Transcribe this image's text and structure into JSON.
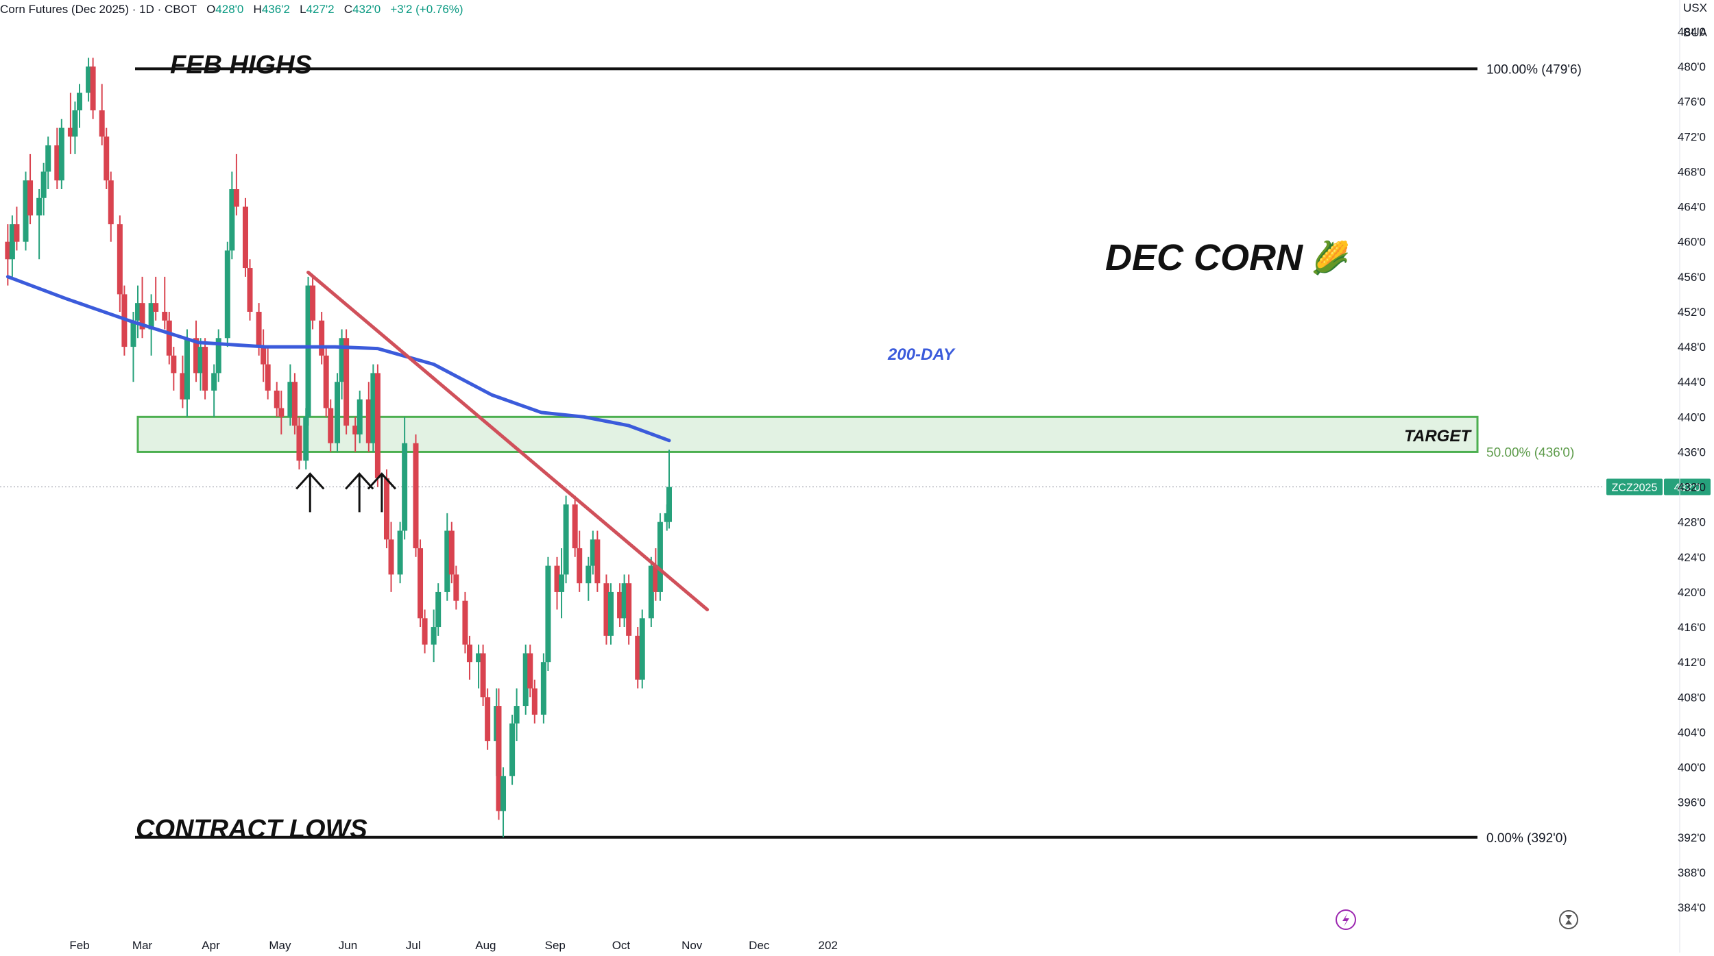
{
  "header": {
    "symbol": "Corn Futures (Dec 2025) · 1D · CBOT",
    "open_label": "O",
    "open": "428'0",
    "high_label": "H",
    "high": "436'2",
    "low_label": "L",
    "low": "427'2",
    "close_label": "C",
    "close": "432'0",
    "change": "+3'2 (+0.76%)"
  },
  "price_axis": {
    "currency": "USX",
    "unit": "BUA",
    "ticks": [
      "484'0",
      "480'0",
      "476'0",
      "472'0",
      "468'0",
      "464'0",
      "460'0",
      "456'0",
      "452'0",
      "448'0",
      "444'0",
      "440'0",
      "436'0",
      "432'0",
      "428'0",
      "424'0",
      "420'0",
      "416'0",
      "412'0",
      "408'0",
      "404'0",
      "400'0",
      "396'0",
      "392'0",
      "388'0",
      "384'0"
    ],
    "symbol_tag": "ZCZ2025",
    "last_price_tag": "432'0"
  },
  "time_axis": {
    "labels": [
      "Feb",
      "Mar",
      "Apr",
      "May",
      "Jun",
      "Jul",
      "Aug",
      "Sep",
      "Oct",
      "Nov",
      "Dec",
      "202"
    ]
  },
  "annotations": {
    "feb_highs": "FEB HIGHS",
    "contract_lows": "CONTRACT LOWS",
    "title": "DEC CORN",
    "title_emoji": "🌽",
    "ma_label": "200-DAY",
    "target": "TARGET",
    "fib_100": "100.00% (479'6)",
    "fib_50": "50.00% (436'0)",
    "fib_0": "0.00% (392'0)"
  },
  "colors": {
    "up": "#26a17b",
    "down": "#d9434f",
    "ma200": "#3b5bdb",
    "trendline": "#d0505a",
    "target_zone": "#4caf50",
    "fib_50": "#5b9a48"
  },
  "icons": [
    "lightning-icon",
    "replay-icon"
  ],
  "chart_data": {
    "type": "candlestick",
    "title": "DEC CORN",
    "ylim": [
      383,
      486
    ],
    "y_unit": "cents/bu",
    "x_labels": [
      "Feb",
      "Mar",
      "Apr",
      "May",
      "Jun",
      "Jul",
      "Aug",
      "Sep",
      "Oct",
      "Nov",
      "Dec"
    ],
    "last": {
      "open": 428.0,
      "high": 436.25,
      "low": 427.25,
      "close": 432.0,
      "change": 3.25,
      "change_pct": 0.76
    },
    "levels": [
      {
        "name": "FEB HIGHS",
        "fib": "100.00%",
        "value": 479.75
      },
      {
        "name": "TARGET",
        "fib": "50.00%",
        "value": 436.0
      },
      {
        "name": "CONTRACT LOWS",
        "fib": "0.00%",
        "value": 392.0
      }
    ],
    "target_zone": [
      436.0,
      440.0
    ],
    "trendline": {
      "from": {
        "date": "2025-05-20",
        "value": 456.5
      },
      "to": {
        "date": "2025-11-14",
        "value": 418.0
      }
    },
    "series": [
      {
        "name": "200-DAY",
        "type": "line",
        "points": [
          [
            "2025-01-06",
            456.0
          ],
          [
            "2025-02-01",
            453.5
          ],
          [
            "2025-03-01",
            451.0
          ],
          [
            "2025-04-01",
            448.5
          ],
          [
            "2025-05-01",
            448.0
          ],
          [
            "2025-06-01",
            448.0
          ],
          [
            "2025-06-20",
            447.8
          ],
          [
            "2025-07-15",
            446.0
          ],
          [
            "2025-08-10",
            442.5
          ],
          [
            "2025-09-01",
            440.5
          ],
          [
            "2025-09-20",
            440.0
          ],
          [
            "2025-10-10",
            439.0
          ],
          [
            "2025-10-28",
            437.3
          ]
        ]
      }
    ],
    "candles": [
      [
        "2025-01-06",
        460,
        462,
        455,
        458
      ],
      [
        "2025-01-08",
        458,
        463,
        456,
        462
      ],
      [
        "2025-01-10",
        462,
        464,
        459,
        460
      ],
      [
        "2025-01-14",
        460,
        468,
        459,
        467
      ],
      [
        "2025-01-16",
        467,
        470,
        462,
        463
      ],
      [
        "2025-01-20",
        463,
        466,
        458,
        465
      ],
      [
        "2025-01-22",
        465,
        469,
        463,
        468
      ],
      [
        "2025-01-24",
        468,
        472,
        466,
        471
      ],
      [
        "2025-01-28",
        471,
        473,
        466,
        467
      ],
      [
        "2025-01-30",
        467,
        474,
        466,
        473
      ],
      [
        "2025-02-03",
        473,
        477,
        470,
        472
      ],
      [
        "2025-02-05",
        472,
        476,
        470,
        475
      ],
      [
        "2025-02-07",
        475,
        478,
        473,
        477
      ],
      [
        "2025-02-11",
        477,
        481,
        476,
        480
      ],
      [
        "2025-02-13",
        480,
        481,
        474,
        475
      ],
      [
        "2025-02-17",
        475,
        478,
        471,
        472
      ],
      [
        "2025-02-19",
        472,
        473,
        466,
        467
      ],
      [
        "2025-02-21",
        467,
        468,
        460,
        462
      ],
      [
        "2025-02-25",
        462,
        463,
        452,
        454
      ],
      [
        "2025-02-27",
        454,
        455,
        447,
        448
      ],
      [
        "2025-03-03",
        448,
        452,
        444,
        451
      ],
      [
        "2025-03-05",
        451,
        455,
        449,
        453
      ],
      [
        "2025-03-07",
        453,
        456,
        449,
        450
      ],
      [
        "2025-03-11",
        450,
        454,
        447,
        453
      ],
      [
        "2025-03-13",
        453,
        456,
        451,
        452
      ],
      [
        "2025-03-17",
        452,
        456,
        450,
        451
      ],
      [
        "2025-03-19",
        451,
        452,
        446,
        447
      ],
      [
        "2025-03-21",
        447,
        448,
        443,
        445
      ],
      [
        "2025-03-25",
        445,
        447,
        441,
        442
      ],
      [
        "2025-03-27",
        442,
        450,
        440,
        449
      ],
      [
        "2025-03-31",
        449,
        451,
        444,
        445
      ],
      [
        "2025-04-02",
        445,
        449,
        443,
        448
      ],
      [
        "2025-04-04",
        448,
        449,
        442,
        443
      ],
      [
        "2025-04-08",
        443,
        446,
        440,
        445
      ],
      [
        "2025-04-10",
        445,
        450,
        444,
        449
      ],
      [
        "2025-04-14",
        449,
        460,
        448,
        459
      ],
      [
        "2025-04-16",
        459,
        468,
        458,
        466
      ],
      [
        "2025-04-18",
        466,
        470,
        463,
        464
      ],
      [
        "2025-04-22",
        464,
        465,
        456,
        457
      ],
      [
        "2025-04-24",
        457,
        458,
        451,
        452
      ],
      [
        "2025-04-28",
        452,
        453,
        447,
        448
      ],
      [
        "2025-04-30",
        448,
        450,
        444,
        446
      ],
      [
        "2025-05-02",
        446,
        448,
        442,
        443
      ],
      [
        "2025-05-06",
        443,
        444,
        440,
        441
      ],
      [
        "2025-05-08",
        441,
        443,
        438,
        440
      ],
      [
        "2025-05-12",
        440,
        446,
        439,
        444
      ],
      [
        "2025-05-14",
        444,
        445,
        438,
        439
      ],
      [
        "2025-05-16",
        439,
        440,
        434,
        435
      ],
      [
        "2025-05-19",
        435,
        441,
        434,
        440
      ],
      [
        "2025-05-20",
        440,
        456,
        439,
        455
      ],
      [
        "2025-05-22",
        455,
        456,
        450,
        451
      ],
      [
        "2025-05-26",
        451,
        452,
        446,
        447
      ],
      [
        "2025-05-28",
        447,
        448,
        440,
        441
      ],
      [
        "2025-05-30",
        441,
        442,
        436,
        437
      ],
      [
        "2025-06-02",
        437,
        445,
        436,
        444
      ],
      [
        "2025-06-04",
        444,
        450,
        442,
        449
      ],
      [
        "2025-06-06",
        449,
        450,
        438,
        439
      ],
      [
        "2025-06-10",
        439,
        440,
        436,
        438
      ],
      [
        "2025-06-12",
        438,
        443,
        437,
        442
      ],
      [
        "2025-06-16",
        442,
        444,
        436,
        437
      ],
      [
        "2025-06-18",
        437,
        446,
        436,
        445
      ],
      [
        "2025-06-20",
        445,
        446,
        432,
        433
      ],
      [
        "2025-06-24",
        433,
        434,
        425,
        426
      ],
      [
        "2025-06-26",
        426,
        428,
        420,
        422
      ],
      [
        "2025-06-30",
        422,
        428,
        421,
        427
      ],
      [
        "2025-07-02",
        427,
        440,
        426,
        437
      ],
      [
        "2025-07-07",
        437,
        438,
        424,
        425
      ],
      [
        "2025-07-09",
        425,
        426,
        416,
        417
      ],
      [
        "2025-07-11",
        417,
        418,
        413,
        414
      ],
      [
        "2025-07-15",
        414,
        418,
        412,
        416
      ],
      [
        "2025-07-17",
        416,
        421,
        415,
        420
      ],
      [
        "2025-07-21",
        420,
        429,
        419,
        427
      ],
      [
        "2025-07-23",
        427,
        428,
        421,
        422
      ],
      [
        "2025-07-25",
        422,
        423,
        418,
        419
      ],
      [
        "2025-07-29",
        419,
        420,
        413,
        414
      ],
      [
        "2025-07-31",
        414,
        415,
        410,
        412
      ],
      [
        "2025-08-04",
        412,
        414,
        409,
        413
      ],
      [
        "2025-08-06",
        413,
        414,
        407,
        408
      ],
      [
        "2025-08-08",
        408,
        409,
        402,
        403
      ],
      [
        "2025-08-12",
        403,
        409,
        399,
        407
      ],
      [
        "2025-08-13",
        407,
        409,
        394,
        395
      ],
      [
        "2025-08-15",
        395,
        400,
        392,
        399
      ],
      [
        "2025-08-19",
        399,
        406,
        398,
        405
      ],
      [
        "2025-08-21",
        405,
        409,
        403,
        407
      ],
      [
        "2025-08-25",
        407,
        414,
        406,
        413
      ],
      [
        "2025-08-27",
        413,
        414,
        408,
        409
      ],
      [
        "2025-08-29",
        409,
        410,
        405,
        406
      ],
      [
        "2025-09-02",
        406,
        413,
        405,
        412
      ],
      [
        "2025-09-04",
        412,
        424,
        411,
        423
      ],
      [
        "2025-09-08",
        423,
        424,
        418,
        420
      ],
      [
        "2025-09-10",
        420,
        425,
        417,
        422
      ],
      [
        "2025-09-12",
        422,
        431,
        421,
        430
      ],
      [
        "2025-09-16",
        430,
        431,
        424,
        425
      ],
      [
        "2025-09-18",
        425,
        427,
        420,
        421
      ],
      [
        "2025-09-22",
        421,
        424,
        419,
        423
      ],
      [
        "2025-09-24",
        423,
        427,
        422,
        426
      ],
      [
        "2025-09-26",
        426,
        427,
        420,
        421
      ],
      [
        "2025-09-30",
        421,
        422,
        414,
        415
      ],
      [
        "2025-10-02",
        415,
        421,
        414,
        420
      ],
      [
        "2025-10-06",
        420,
        421,
        416,
        417
      ],
      [
        "2025-10-08",
        417,
        422,
        416,
        421
      ],
      [
        "2025-10-10",
        421,
        422,
        414,
        415
      ],
      [
        "2025-10-14",
        415,
        416,
        409,
        410
      ],
      [
        "2025-10-16",
        410,
        418,
        409,
        417
      ],
      [
        "2025-10-20",
        417,
        424,
        416,
        423
      ],
      [
        "2025-10-22",
        423,
        425,
        419,
        420
      ],
      [
        "2025-10-24",
        420,
        429,
        419,
        428
      ],
      [
        "2025-10-27",
        428,
        430,
        427,
        429
      ],
      [
        "2025-10-28",
        428,
        436.25,
        427.25,
        432
      ]
    ]
  }
}
